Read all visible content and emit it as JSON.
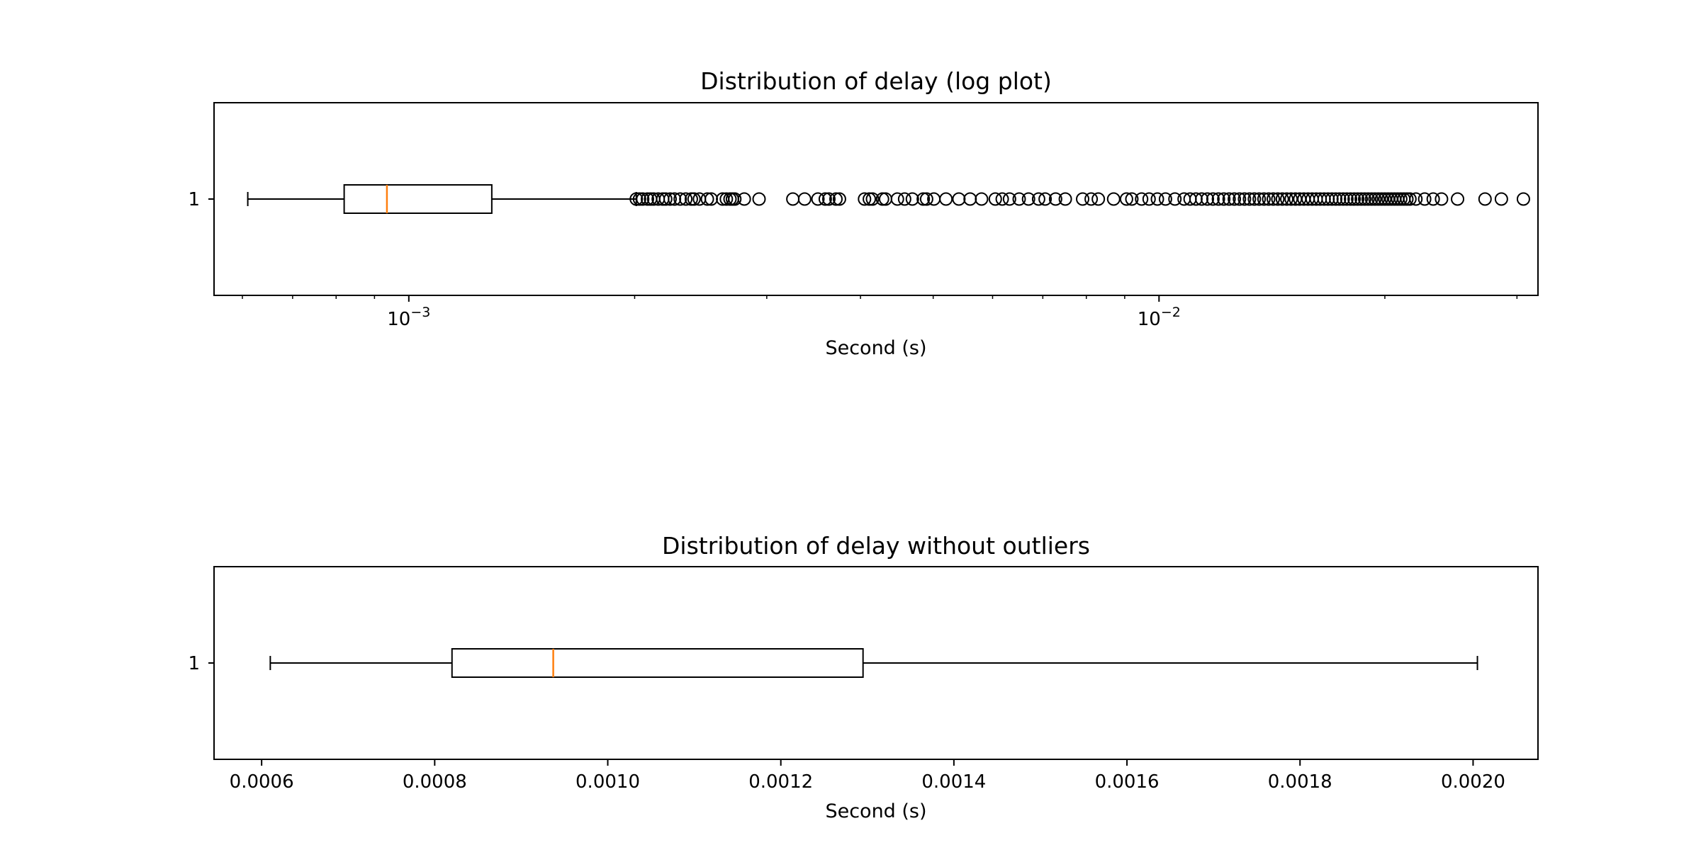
{
  "chart_data": [
    {
      "type": "boxplot",
      "title": "Distribution of delay (log plot)",
      "xlabel": "Second (s)",
      "ylabel": "",
      "orientation": "horizontal",
      "x_scale": "log",
      "xlim": [
        0.00055,
        0.032
      ],
      "x_ticks": [
        {
          "value": 0.001,
          "base": "10",
          "exponent": "−3"
        },
        {
          "value": 0.01,
          "base": "10",
          "exponent": "−2"
        }
      ],
      "y_tick_labels": [
        "1"
      ],
      "grid": false,
      "box": {
        "whisker_low": 0.00061,
        "q1": 0.00082,
        "median": 0.000935,
        "q3": 0.00129,
        "whisker_high": 0.00201
      },
      "outliers": [
        0.00201,
        0.00203,
        0.00205,
        0.00208,
        0.0021,
        0.00212,
        0.00215,
        0.00218,
        0.0022,
        0.00223,
        0.00226,
        0.0023,
        0.00234,
        0.00238,
        0.0024,
        0.00244,
        0.0025,
        0.00253,
        0.00262,
        0.00265,
        0.00268,
        0.0027,
        0.00272,
        0.0028,
        0.00293,
        0.00325,
        0.00337,
        0.00351,
        0.00359,
        0.00363,
        0.00371,
        0.00375,
        0.00405,
        0.00411,
        0.00415,
        0.00428,
        0.00432,
        0.00448,
        0.00458,
        0.00469,
        0.00485,
        0.0049,
        0.00501,
        0.0052,
        0.00541,
        0.0056,
        0.0058,
        0.00605,
        0.00618,
        0.00632,
        0.00651,
        0.0067,
        0.00691,
        0.00705,
        0.00728,
        0.0075,
        0.00791,
        0.00812,
        0.0083,
        0.0087,
        0.00905,
        0.0092,
        0.00948,
        0.0097,
        0.00995,
        0.0102,
        0.0105,
        0.0108,
        0.011,
        0.0112,
        0.0114,
        0.0116,
        0.0118,
        0.012,
        0.0122,
        0.0124,
        0.0126,
        0.0128,
        0.013,
        0.0132,
        0.0134,
        0.0136,
        0.0138,
        0.014,
        0.0142,
        0.0144,
        0.0146,
        0.0148,
        0.015,
        0.0152,
        0.0154,
        0.0156,
        0.0158,
        0.016,
        0.0162,
        0.0164,
        0.0166,
        0.0168,
        0.017,
        0.0172,
        0.0174,
        0.0176,
        0.0178,
        0.018,
        0.0182,
        0.0184,
        0.0186,
        0.0188,
        0.019,
        0.0192,
        0.0194,
        0.0196,
        0.0198,
        0.02,
        0.0202,
        0.0204,
        0.0206,
        0.0208,
        0.021,
        0.0212,
        0.0214,
        0.0216,
        0.022,
        0.0226,
        0.0232,
        0.0238,
        0.025,
        0.0272,
        0.0286,
        0.0306
      ],
      "colors": {
        "box": "#000000",
        "median": "#ff7f0e",
        "outlier_edge": "#000000"
      }
    },
    {
      "type": "boxplot",
      "title": "Distribution of delay without outliers",
      "xlabel": "Second (s)",
      "ylabel": "",
      "orientation": "horizontal",
      "x_scale": "linear",
      "xlim": [
        0.000545,
        0.002075
      ],
      "x_ticks": [
        {
          "value": 0.0006,
          "label": "0.0006"
        },
        {
          "value": 0.0008,
          "label": "0.0008"
        },
        {
          "value": 0.001,
          "label": "0.0010"
        },
        {
          "value": 0.0012,
          "label": "0.0012"
        },
        {
          "value": 0.0014,
          "label": "0.0014"
        },
        {
          "value": 0.0016,
          "label": "0.0016"
        },
        {
          "value": 0.0018,
          "label": "0.0018"
        },
        {
          "value": 0.002,
          "label": "0.0020"
        }
      ],
      "y_tick_labels": [
        "1"
      ],
      "grid": false,
      "box": {
        "whisker_low": 0.00061,
        "q1": 0.00082,
        "median": 0.000937,
        "q3": 0.001295,
        "whisker_high": 0.002005
      },
      "outliers": [],
      "colors": {
        "box": "#000000",
        "median": "#ff7f0e",
        "outlier_edge": "#000000"
      }
    }
  ]
}
